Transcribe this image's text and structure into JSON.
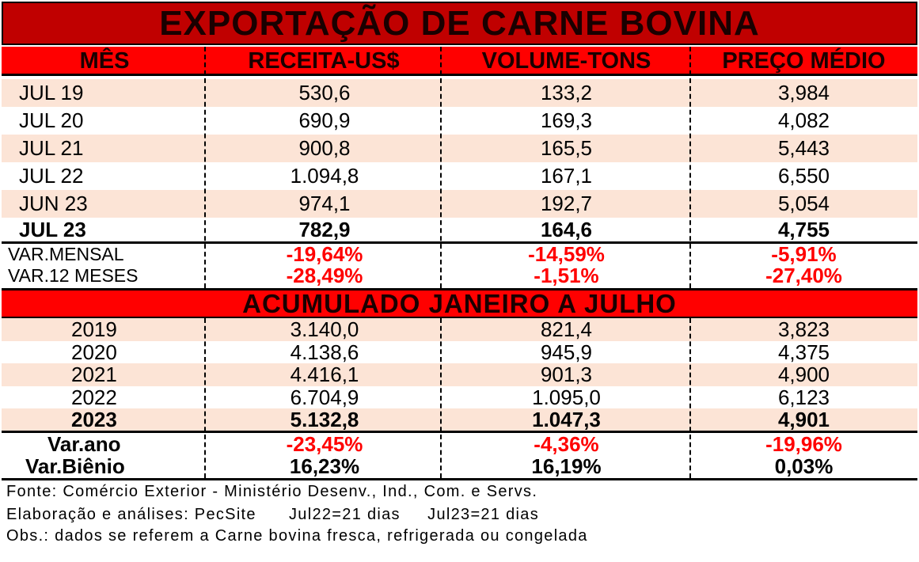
{
  "title": "EXPORTAÇÃO DE CARNE BOVINA",
  "headers": [
    "MÊS",
    "RECEITA-US$",
    "VOLUME-TONS",
    "PREÇO MÉDIO"
  ],
  "monthly_rows": [
    {
      "mes": "JUL 19",
      "receita": "530,6",
      "volume": "133,2",
      "preco": "3,984"
    },
    {
      "mes": "JUL 20",
      "receita": "690,9",
      "volume": "169,3",
      "preco": "4,082"
    },
    {
      "mes": "JUL 21",
      "receita": "900,8",
      "volume": "165,5",
      "preco": "5,443"
    },
    {
      "mes": "JUL 22",
      "receita": "1.094,8",
      "volume": "167,1",
      "preco": "6,550"
    },
    {
      "mes": "JUN 23",
      "receita": "974,1",
      "volume": "192,7",
      "preco": "5,054"
    },
    {
      "mes": "JUL 23",
      "receita": "782,9",
      "volume": "164,6",
      "preco": "4,755"
    }
  ],
  "monthly_vars": [
    {
      "label": "VAR.MENSAL",
      "receita": "-19,64%",
      "volume": "-14,59%",
      "preco": "-5,91%"
    },
    {
      "label": "VAR.12 MESES",
      "receita": "-28,49%",
      "volume": "-1,51%",
      "preco": "-27,40%"
    }
  ],
  "acc_title": "ACUMULADO JANEIRO A JULHO",
  "annual_rows": [
    {
      "ano": "2019",
      "receita": "3.140,0",
      "volume": "821,4",
      "preco": "3,823"
    },
    {
      "ano": "2020",
      "receita": "4.138,6",
      "volume": "945,9",
      "preco": "4,375"
    },
    {
      "ano": "2021",
      "receita": "4.416,1",
      "volume": "901,3",
      "preco": "4,900"
    },
    {
      "ano": "2022",
      "receita": "6.704,9",
      "volume": "1.095,0",
      "preco": "6,123"
    },
    {
      "ano": "2023",
      "receita": "5.132,8",
      "volume": "1.047,3",
      "preco": "4,901"
    }
  ],
  "annual_vars": [
    {
      "label": "Var.ano",
      "receita": "-23,45%",
      "volume": "-4,36%",
      "preco": "-19,96%"
    },
    {
      "label": "Var.Biênio",
      "receita": "16,23%",
      "volume": "16,19%",
      "preco": "0,03%"
    }
  ],
  "footer": {
    "fonte": "Fonte: Comércio Exterior - Ministério Desenv., Ind., Com. e Servs.",
    "elaboracao": "Elaboração e análises: PecSite      Jul22=21 dias     Jul23=21 dias",
    "obs": "Obs.: dados se referem a Carne bovina fresca, refrigerada ou congelada"
  },
  "colors": {
    "title_bg": "#c00000",
    "header_bg": "#ff0000",
    "shade": "#fce4d6",
    "negative": "#ff0000"
  }
}
